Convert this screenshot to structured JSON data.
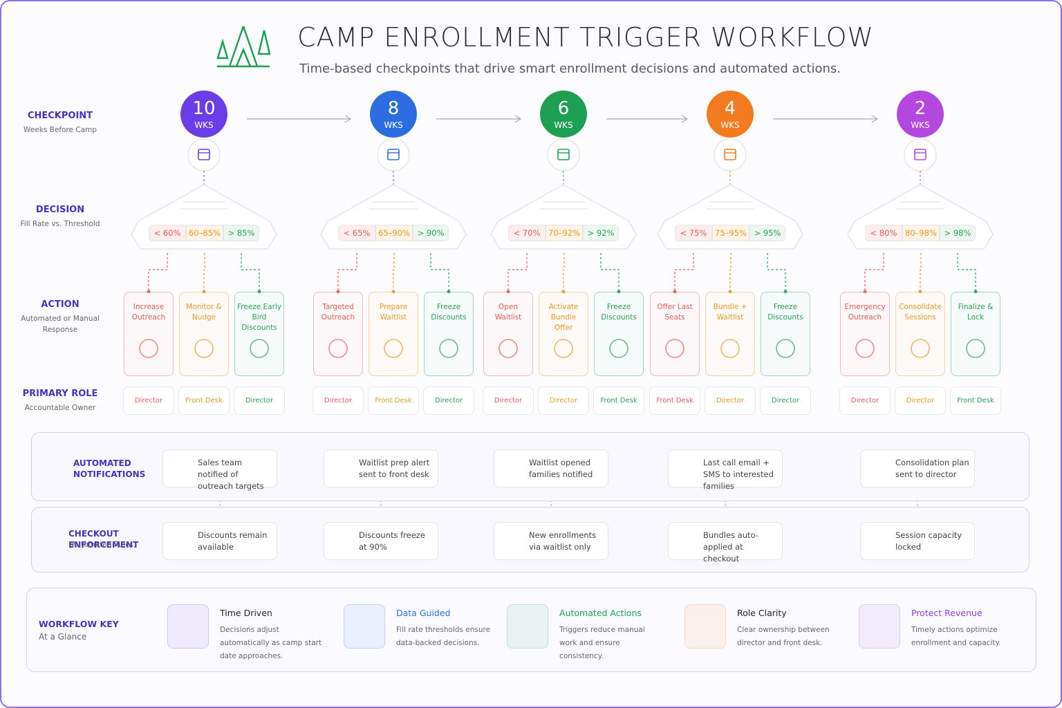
{
  "header": {
    "title": "CAMP ENROLLMENT TRIGGER WORKFLOW",
    "subtitle": "Time-based checkpoints that drive smart enrollment decisions and automated actions."
  },
  "row_labels": [
    {
      "title": "CHECKPOINT",
      "subtitle": "Weeks Before Camp"
    },
    {
      "title": "DECISION",
      "subtitle": "Fill Rate vs. Threshold"
    },
    {
      "title": "ACTION",
      "subtitle": "Automated or Manual Response"
    },
    {
      "title": "PRIMARY ROLE",
      "subtitle": "Accountable Owner"
    }
  ],
  "checkpoints": [
    {
      "weeks": 10,
      "unit": "WKS",
      "color": "#6a3de8",
      "thresholds": [
        "< 60%",
        "60–85%",
        "> 85%"
      ],
      "actions": [
        {
          "label": "Increase Outreach",
          "role": "Director"
        },
        {
          "label": "Monitor & Nudge",
          "role": "Front Desk"
        },
        {
          "label": "Freeze Early Bird Discounts",
          "role": "Director"
        }
      ]
    },
    {
      "weeks": 8,
      "unit": "WKS",
      "color": "#2b6de0",
      "thresholds": [
        "< 65%",
        "65–90%",
        "> 90%"
      ],
      "actions": [
        {
          "label": "Targeted Outreach",
          "role": "Director"
        },
        {
          "label": "Prepare Waitlist",
          "role": "Front Desk"
        },
        {
          "label": "Freeze Discounts",
          "role": "Director"
        }
      ]
    },
    {
      "weeks": 6,
      "unit": "WKS",
      "color": "#1e9e53",
      "thresholds": [
        "< 70%",
        "70–92%",
        "> 92%"
      ],
      "actions": [
        {
          "label": "Open Waitlist",
          "role": "Director"
        },
        {
          "label": "Activate Bundle Offer",
          "role": "Director"
        },
        {
          "label": "Freeze Discounts",
          "role": "Front Desk"
        }
      ]
    },
    {
      "weeks": 4,
      "unit": "WKS",
      "color": "#f47a1f",
      "thresholds": [
        "< 75%",
        "75–95%",
        "> 95%"
      ],
      "actions": [
        {
          "label": "Offer Last Seats",
          "role": "Front Desk"
        },
        {
          "label": "Bundle + Waitlist",
          "role": "Director"
        },
        {
          "label": "Freeze Discounts",
          "role": "Director"
        }
      ]
    },
    {
      "weeks": 2,
      "unit": "WKS",
      "color": "#b347e0",
      "thresholds": [
        "< 80%",
        "80–98%",
        "> 98%"
      ],
      "actions": [
        {
          "label": "Emergency Outreach",
          "role": "Director"
        },
        {
          "label": "Consolidate Sessions",
          "role": "Director"
        },
        {
          "label": "Finalize & Lock",
          "role": "Front Desk"
        }
      ]
    }
  ],
  "notifications": {
    "title": "AUTOMATED NOTIFICATIONS",
    "items": [
      "Sales team notified of outreach targets",
      "Waitlist prep alert sent to front desk",
      "Waitlist opened families notified",
      "Last call email + SMS to interested families",
      "Consolidation plan sent to director"
    ]
  },
  "enforcement": {
    "title": "CHECKOUT ENFORCEMENT",
    "subtitle": "(Automated Rules)",
    "items": [
      "Discounts remain available",
      "Discounts freeze at 90%",
      "New enrollments via waitlist only",
      "Bundles auto-applied at checkout",
      "Session capacity locked"
    ]
  },
  "key": {
    "title": "WORKFLOW KEY",
    "subtitle": "At a Glance",
    "items": [
      {
        "title": "Time Driven",
        "text": "Decisions adjust automatically as camp start date approaches.",
        "color": "#6a3de8"
      },
      {
        "title": "Data Guided",
        "text": "Fill rate thresholds ensure data-backed decisions.",
        "color": "#2b6de0"
      },
      {
        "title": "Automated Actions",
        "text": "Triggers reduce manual work and ensure consistency.",
        "color": "#1e9e53"
      },
      {
        "title": "Role Clarity",
        "text": "Clear ownership between director and front desk.",
        "color": "#f47a1f"
      },
      {
        "title": "Protect Revenue",
        "text": "Timely actions optimize enrollment and capacity.",
        "color": "#8a3fd8"
      }
    ]
  }
}
